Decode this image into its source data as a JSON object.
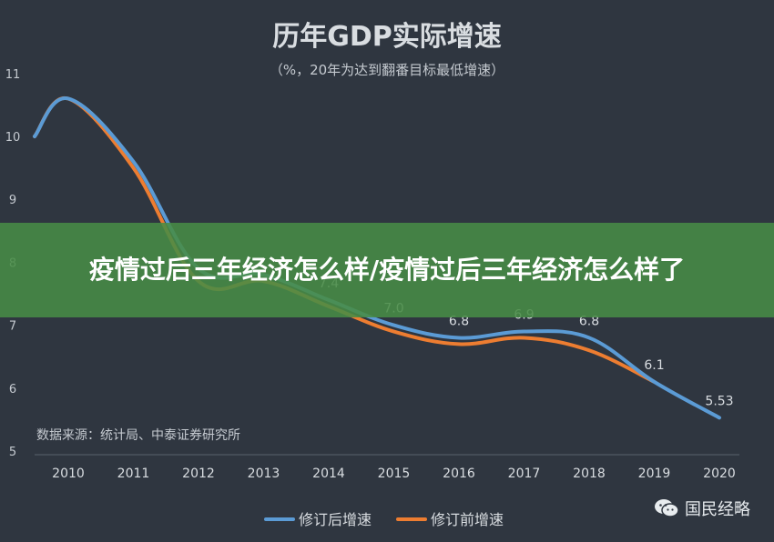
{
  "chart_data": {
    "type": "line",
    "title": "历年GDP实际增速",
    "subtitle": "（%，20年为达到翻番目标最低增速）",
    "source": "数据来源：统计局、中泰证券研究所",
    "x": [
      "2010",
      "2011",
      "2012",
      "2013",
      "2014",
      "2015",
      "2016",
      "2017",
      "2018",
      "2019",
      "2020"
    ],
    "ylim": [
      5,
      11
    ],
    "yticks": [
      5,
      6,
      7,
      8,
      9,
      10,
      11
    ],
    "grid": false,
    "legend_position": "bottom",
    "series": [
      {
        "name": "修订后增速",
        "color": "#5b9bd5",
        "values": [
          10.6,
          9.6,
          7.9,
          7.8,
          7.4,
          7.0,
          6.8,
          6.9,
          6.8,
          6.1,
          5.53
        ]
      },
      {
        "name": "修订前增速",
        "color": "#ed7d31",
        "values": [
          10.6,
          9.5,
          7.7,
          7.7,
          7.3,
          6.9,
          6.7,
          6.8,
          6.6,
          6.1,
          null
        ]
      }
    ],
    "data_labels": [
      {
        "x": "2014",
        "y": 7.4,
        "text": "7.4"
      },
      {
        "x": "2015",
        "y": 7.0,
        "text": "7.0"
      },
      {
        "x": "2016",
        "y": 6.8,
        "text": "6.8"
      },
      {
        "x": "2017",
        "y": 6.9,
        "text": "6.9"
      },
      {
        "x": "2018",
        "y": 6.8,
        "text": "6.8"
      },
      {
        "x": "2019",
        "y": 6.1,
        "text": "6.1"
      },
      {
        "x": "2020",
        "y": 5.53,
        "text": "5.53"
      }
    ]
  },
  "overlay": {
    "headline": "疫情过后三年经济怎么样/疫情过后三年经济怎么样了"
  },
  "watermark": {
    "text": "国民经略",
    "icon": "wechat-icon"
  },
  "colors": {
    "background": "#2f3640",
    "text": "#d9dde1",
    "banner": "#488c46"
  }
}
